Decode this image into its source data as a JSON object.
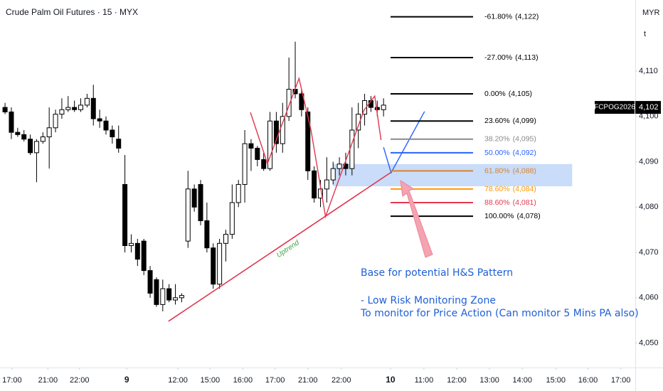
{
  "chart_data": {
    "type": "candlestick",
    "title": "Crude Palm Oil Futures · 15 · MYX",
    "currency": "MYR",
    "axis_unit": "t",
    "ylim": [
      4044.6,
      4125.7
    ],
    "xlim": [
      -0.8,
      99.9
    ],
    "yticks": [
      {
        "value": 4110,
        "label": "4,110"
      },
      {
        "value": 4100,
        "label": "4,100"
      },
      {
        "value": 4090,
        "label": "4,090"
      },
      {
        "value": 4080,
        "label": "4,080"
      },
      {
        "value": 4070,
        "label": "4,070"
      },
      {
        "value": 4060,
        "label": "4,060"
      },
      {
        "value": 4050,
        "label": "4,050"
      }
    ],
    "xticks": [
      {
        "value": 1.1,
        "label": "17:00"
      },
      {
        "value": 6.8,
        "label": "21:00"
      },
      {
        "value": 11.8,
        "label": "22:00"
      },
      {
        "value": 19.3,
        "label": "9"
      },
      {
        "value": 27.4,
        "label": "12:00"
      },
      {
        "value": 32.5,
        "label": "15:00"
      },
      {
        "value": 37.7,
        "label": "16:00"
      },
      {
        "value": 42.8,
        "label": "17:00"
      },
      {
        "value": 48.0,
        "label": "21:00"
      },
      {
        "value": 53.3,
        "label": "22:00"
      },
      {
        "value": 61.1,
        "label": "10"
      },
      {
        "value": 66.4,
        "label": "11:00"
      },
      {
        "value": 71.6,
        "label": "12:00"
      },
      {
        "value": 76.8,
        "label": "13:00"
      },
      {
        "value": 82.0,
        "label": "14:00"
      },
      {
        "value": 87.3,
        "label": "15:00"
      },
      {
        "value": 92.4,
        "label": "16:00"
      },
      {
        "value": 97.6,
        "label": "17:00"
      }
    ],
    "grid": false,
    "up_color": "#ffffff",
    "down_color": "#000000",
    "candles": {
      "open": [
        4102,
        4101,
        4096.5,
        4096,
        4095,
        4092,
        4094.5,
        4095.5,
        4097.5,
        4100.5,
        4101.5,
        4102,
        4101.5,
        4102.5,
        4104,
        4099.5,
        4099,
        4097,
        4095,
        4085,
        4071.5,
        4072,
        4072.5,
        4066,
        4064,
        4058.5,
        4062,
        4059.5,
        4060,
        4072.5,
        4084,
        4085,
        4077,
        4071,
        4063,
        4072,
        4074,
        4081,
        4085,
        4094,
        4093,
        4090.5,
        4088.5,
        4099,
        4094,
        4100,
        4106,
        4105,
        4101,
        4088,
        4082,
        4084,
        4086,
        4088.5,
        4089.5,
        4088.5,
        4097,
        4100.5,
        4103.5,
        4102,
        4101.5
      ],
      "high": [
        4103,
        4102,
        4097.5,
        4097,
        4096,
        4095,
        4096.5,
        4102,
        4101.5,
        4104,
        4104.5,
        4103.5,
        4104,
        4105,
        4107,
        4101.5,
        4100,
        4098,
        4098,
        4091.5,
        4074,
        4073,
        4073,
        4067,
        4064.5,
        4064,
        4063,
        4063,
        4061,
        4088,
        4085,
        4086,
        4081,
        4072,
        4073,
        4075,
        4085,
        4086,
        4097,
        4095,
        4093.5,
        4092,
        4101,
        4101,
        4103,
        4113,
        4116.5,
        4106,
        4102,
        4089,
        4086,
        4091,
        4090,
        4091,
        4092,
        4102,
        4103,
        4105,
        4104.5,
        4103.5,
        4104
      ],
      "low": [
        4100.5,
        4095,
        4095.5,
        4094.5,
        4091.5,
        4085.5,
        4094,
        4088.5,
        4096.5,
        4099.5,
        4101,
        4101,
        4101,
        4102,
        4098,
        4097.5,
        4096,
        4094,
        4092,
        4070,
        4070,
        4067,
        4065,
        4060,
        4058,
        4057,
        4059,
        4058.5,
        4059,
        4071,
        4079,
        4076,
        4070,
        4062,
        4062,
        4068,
        4073,
        4080,
        4081,
        4088,
        4089,
        4088,
        4088,
        4092,
        4092,
        4099,
        4104,
        4100,
        4086,
        4081,
        4080,
        4081,
        4085,
        4087,
        4087,
        4087,
        4093,
        4098,
        4101,
        4100,
        4100
      ],
      "close": [
        4101,
        4096.5,
        4096,
        4095,
        4092,
        4094.5,
        4095.5,
        4097.5,
        4100.5,
        4101.5,
        4102,
        4101.5,
        4102.5,
        4104,
        4099.5,
        4099,
        4097,
        4095.5,
        4093,
        4071.5,
        4072,
        4068.5,
        4066,
        4061,
        4058.5,
        4062,
        4059.5,
        4060,
        4060.5,
        4084,
        4080,
        4077,
        4071,
        4063,
        4072,
        4074,
        4081,
        4085,
        4094,
        4093,
        4090.5,
        4088.5,
        4099,
        4094,
        4100,
        4106,
        4105,
        4101.5,
        4088,
        4082,
        4084,
        4086,
        4088.5,
        4089.5,
        4088.5,
        4097,
        4100.5,
        4103.5,
        4102,
        4101.5,
        4102.5
      ]
    },
    "last_price": 4102,
    "last_price_label": "4,102",
    "symbol_tag": "FCPOG2026",
    "fib_levels": [
      {
        "level": "-61.80%",
        "price": 4122,
        "price_label": "(4,122)",
        "color": "#000000"
      },
      {
        "level": "-27.00%",
        "price": 4113,
        "price_label": "(4,113)",
        "color": "#000000"
      },
      {
        "level": "0.00%",
        "price": 4105,
        "price_label": "(4,105)",
        "color": "#000000"
      },
      {
        "level": "23.60%",
        "price": 4099,
        "price_label": "(4,099)",
        "color": "#000000"
      },
      {
        "level": "38.20%",
        "price": 4095,
        "price_label": "(4,095)",
        "color": "#8a8a8a"
      },
      {
        "level": "50.00%",
        "price": 4092,
        "price_label": "(4,092)",
        "color": "#2962ff"
      },
      {
        "level": "61.80%",
        "price": 4088,
        "price_label": "(4,088)",
        "color": "#d9822b"
      },
      {
        "level": "78.60%",
        "price": 4084,
        "price_label": "(4,084)",
        "color": "#ff9800"
      },
      {
        "level": "88.60%",
        "price": 4081,
        "price_label": "(4,081)",
        "color": "#e53950"
      },
      {
        "level": "100.00%",
        "price": 4078,
        "price_label": "(4,078)",
        "color": "#000000"
      }
    ],
    "zone": {
      "x": [
        52,
        89.9
      ],
      "y": [
        4084.6,
        4089.5
      ],
      "color": "#bcd3f7"
    },
    "trendline": {
      "x": [
        25.9,
        61.1
      ],
      "y": [
        4054.8,
        4087.6
      ],
      "color": "#e0374f",
      "label": "Uptrend",
      "label_color": "#43a047"
    },
    "pattern_line": {
      "x": [
        38.9,
        41.6,
        46.6,
        48.5,
        50.8,
        56.9,
        58.6,
        59.6
      ],
      "y": [
        4100.9,
        4089.6,
        4108.4,
        4097,
        4077.9,
        4101.4,
        4104.5,
        4094.8
      ],
      "color": "#e0374f"
    },
    "projection_line": {
      "x": [
        60.0,
        61.2,
        66.5
      ],
      "y": [
        4093.2,
        4087.6,
        4101.1
      ],
      "color": "#2962ff"
    },
    "notes": [
      "Base for potential H&S Pattern",
      "- Low Risk Monitoring Zone",
      "To monitor for Price Action (Can monitor 5 Mins PA also)"
    ]
  }
}
